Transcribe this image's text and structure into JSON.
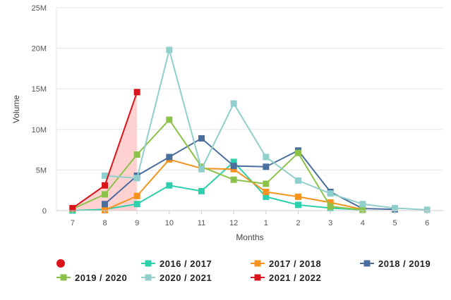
{
  "chart_data": {
    "type": "line",
    "title": "",
    "xlabel": "Months",
    "ylabel": "Volume",
    "categories": [
      "7",
      "8",
      "9",
      "10",
      "11",
      "12",
      "1",
      "2",
      "3",
      "4",
      "5",
      "6"
    ],
    "yticks": [
      "0",
      "5M",
      "10M",
      "15M",
      "20M",
      "25M"
    ],
    "ylim": [
      0,
      25000000
    ],
    "grid": "horizontal",
    "legend_position": "bottom",
    "series": [
      {
        "name": "2016 / 2017",
        "color": "#2ecfad",
        "values": [
          0,
          150000,
          800000,
          3100000,
          2400000,
          6000000,
          1700000,
          700000,
          300000,
          100000,
          null,
          null
        ]
      },
      {
        "name": "2017 / 2018",
        "color": "#f5931e",
        "values": [
          null,
          50000,
          1800000,
          6300000,
          5200000,
          5100000,
          2300000,
          1700000,
          1000000,
          150000,
          null,
          null
        ]
      },
      {
        "name": "2018 / 2019",
        "color": "#4a6f9e",
        "values": [
          null,
          800000,
          4300000,
          6600000,
          8900000,
          5500000,
          5400000,
          7400000,
          2300000,
          250000,
          150000,
          null
        ]
      },
      {
        "name": "2019 / 2020",
        "color": "#8bc34a",
        "values": [
          200000,
          2000000,
          6900000,
          11200000,
          5400000,
          3800000,
          3300000,
          7100000,
          500000,
          100000,
          null,
          null
        ]
      },
      {
        "name": "2020 / 2021",
        "color": "#90cfcc",
        "values": [
          null,
          4300000,
          4000000,
          19800000,
          5100000,
          13200000,
          6600000,
          3700000,
          2100000,
          800000,
          300000,
          100000
        ]
      },
      {
        "name": "2021 / 2022",
        "color": "#d9141a",
        "area_color": "#ffcccc",
        "area": true,
        "values": [
          300000,
          3100000,
          14600000,
          null,
          null,
          null,
          null,
          null,
          null,
          null,
          null,
          null
        ]
      }
    ],
    "legend": [
      {
        "marker": "circle",
        "color": "#d9141a",
        "label": ""
      },
      {
        "marker": "line",
        "color": "#2ecfad",
        "label": "2016 / 2017"
      },
      {
        "marker": "line",
        "color": "#f5931e",
        "label": "2017 / 2018"
      },
      {
        "marker": "line",
        "color": "#4a6f9e",
        "label": "2018 / 2019"
      },
      {
        "marker": "line",
        "color": "#8bc34a",
        "label": "2019 / 2020"
      },
      {
        "marker": "line",
        "color": "#90cfcc",
        "label": "2020 / 2021"
      },
      {
        "marker": "line",
        "color": "#d9141a",
        "label": "2021 / 2022"
      }
    ]
  }
}
